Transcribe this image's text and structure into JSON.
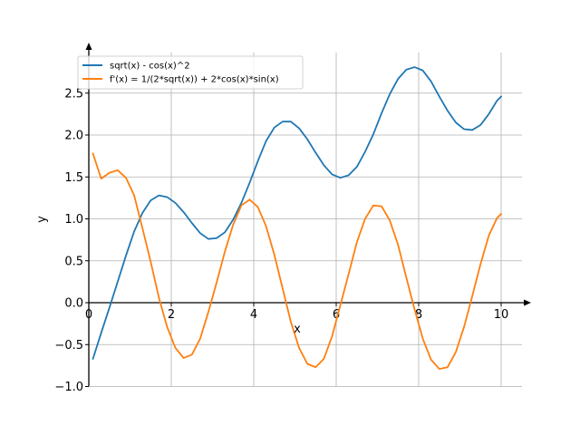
{
  "chart_data": {
    "type": "line",
    "xlabel": "x",
    "ylabel": "y",
    "xlim": [
      -0.5,
      10.7
    ],
    "ylim": [
      -1.0,
      3.0
    ],
    "xticks": [
      0,
      2,
      4,
      6,
      8,
      10
    ],
    "xtick_labels": [
      "0",
      "2",
      "4",
      "6",
      "8",
      "10"
    ],
    "yticks": [
      -1.0,
      -0.5,
      0.0,
      0.5,
      1.0,
      1.5,
      2.0,
      2.5
    ],
    "ytick_labels": [
      "−1.0",
      "−0.5",
      "0.0",
      "0.5",
      "1.0",
      "1.5",
      "2.0",
      "2.5"
    ],
    "grid": true,
    "legend_position": "top-left",
    "series": [
      {
        "name": "sqrt(x) - cos(x)^2",
        "color": "#1f77b4",
        "x": [
          0.1,
          0.3,
          0.5,
          0.7,
          0.9,
          1.1,
          1.3,
          1.5,
          1.7,
          1.9,
          2.1,
          2.3,
          2.5,
          2.7,
          2.9,
          3.1,
          3.3,
          3.5,
          3.7,
          3.9,
          4.1,
          4.3,
          4.5,
          4.7,
          4.9,
          5.1,
          5.3,
          5.5,
          5.7,
          5.9,
          6.1,
          6.3,
          6.5,
          6.7,
          6.9,
          7.1,
          7.3,
          7.5,
          7.7,
          7.9,
          8.1,
          8.3,
          8.5,
          8.7,
          8.9,
          9.1,
          9.3,
          9.5,
          9.7,
          9.9,
          10.0
        ],
        "y": [
          -0.67,
          -0.36,
          -0.06,
          0.25,
          0.56,
          0.85,
          1.07,
          1.22,
          1.28,
          1.26,
          1.19,
          1.08,
          0.95,
          0.83,
          0.76,
          0.77,
          0.84,
          0.99,
          1.19,
          1.43,
          1.69,
          1.93,
          2.09,
          2.16,
          2.16,
          2.08,
          1.95,
          1.79,
          1.64,
          1.53,
          1.49,
          1.52,
          1.62,
          1.8,
          2.01,
          2.26,
          2.49,
          2.67,
          2.78,
          2.81,
          2.77,
          2.64,
          2.46,
          2.29,
          2.15,
          2.07,
          2.06,
          2.12,
          2.25,
          2.41,
          2.46
        ]
      },
      {
        "name": "f'(x) = 1/(2*sqrt(x)) + 2*cos(x)*sin(x)",
        "color": "#ff7f0e",
        "x": [
          0.1,
          0.3,
          0.5,
          0.7,
          0.9,
          1.1,
          1.3,
          1.5,
          1.7,
          1.9,
          2.1,
          2.3,
          2.5,
          2.7,
          2.9,
          3.1,
          3.3,
          3.5,
          3.7,
          3.9,
          4.1,
          4.3,
          4.5,
          4.7,
          4.9,
          5.1,
          5.3,
          5.5,
          5.7,
          5.9,
          6.1,
          6.3,
          6.5,
          6.7,
          6.9,
          7.1,
          7.3,
          7.5,
          7.7,
          7.9,
          8.1,
          8.3,
          8.5,
          8.7,
          8.9,
          9.1,
          9.3,
          9.5,
          9.7,
          9.9,
          10.0
        ],
        "y": [
          1.78,
          1.48,
          1.55,
          1.58,
          1.49,
          1.28,
          0.89,
          0.49,
          0.06,
          -0.29,
          -0.54,
          -0.66,
          -0.62,
          -0.43,
          -0.11,
          0.24,
          0.61,
          0.93,
          1.16,
          1.23,
          1.14,
          0.91,
          0.57,
          0.17,
          -0.23,
          -0.54,
          -0.73,
          -0.77,
          -0.67,
          -0.4,
          -0.03,
          0.34,
          0.72,
          1.0,
          1.16,
          1.15,
          0.98,
          0.69,
          0.3,
          -0.08,
          -0.43,
          -0.68,
          -0.79,
          -0.77,
          -0.59,
          -0.29,
          0.08,
          0.46,
          0.8,
          1.01,
          1.06
        ]
      }
    ]
  }
}
